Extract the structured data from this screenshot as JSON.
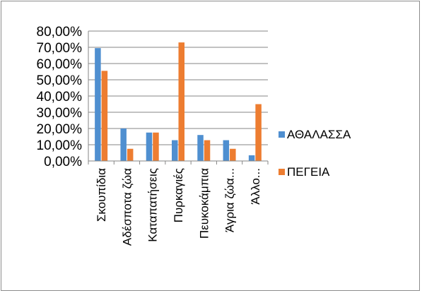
{
  "chart_data": {
    "type": "bar",
    "categories": [
      "Σκουπίδια",
      "Αδέσποτα ζώα",
      "Καταπατήσεις",
      "Πυρκαγιές",
      "Πευκοκάμπια",
      "Άγρια ζώα...",
      "Άλλο..."
    ],
    "series": [
      {
        "name": "ΑΘΑΛΑΣΣΑ",
        "color": "#4f8fd0",
        "values": [
          69.5,
          20.0,
          17.5,
          12.8,
          16.0,
          12.8,
          3.5
        ]
      },
      {
        "name": "ΠΕΓΕΙΑ",
        "color": "#ed7d31",
        "values": [
          55.5,
          7.5,
          17.5,
          73.0,
          12.8,
          7.5,
          35.0
        ]
      }
    ],
    "ylim": [
      0,
      80
    ],
    "y_ticks": [
      "0,00%",
      "10,00%",
      "20,00%",
      "30,00%",
      "40,00%",
      "50,00%",
      "60,00%",
      "70,00%",
      "80,00%"
    ],
    "y_tick_values": [
      0,
      10,
      20,
      30,
      40,
      50,
      60,
      70,
      80
    ],
    "grid": true,
    "legend_position": "right"
  }
}
